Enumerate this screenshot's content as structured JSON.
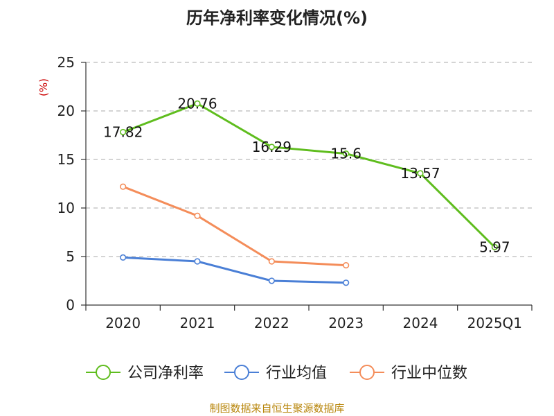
{
  "chart_data": {
    "type": "line",
    "title": "历年净利率变化情况(%)",
    "ylabel": "(%)",
    "xlabel": "",
    "categories": [
      "2020",
      "2021",
      "2022",
      "2023",
      "2024",
      "2025Q1"
    ],
    "ylim": [
      0,
      25
    ],
    "yticks": [
      0,
      5,
      10,
      15,
      20,
      25
    ],
    "grid": true,
    "legend_position": "bottom",
    "series": [
      {
        "name": "公司净利率",
        "color": "#5fbd1e",
        "values": [
          17.82,
          20.76,
          16.29,
          15.6,
          13.57,
          5.97
        ],
        "labels": [
          "17.82",
          "20.76",
          "16.29",
          "15.6",
          "13.57",
          "5.97"
        ]
      },
      {
        "name": "行业均值",
        "color": "#4a7fd6",
        "values": [
          4.9,
          4.5,
          2.5,
          2.3,
          null,
          null
        ]
      },
      {
        "name": "行业中位数",
        "color": "#f48d5a",
        "values": [
          12.2,
          9.2,
          4.5,
          4.1,
          null,
          null
        ]
      }
    ]
  },
  "footer": {
    "source": "制图数据来自恒生聚源数据库"
  },
  "colors": {
    "axis": "#333333",
    "grid": "#bbbbbb",
    "unit": "#cc0000",
    "source": "#b8860b"
  }
}
